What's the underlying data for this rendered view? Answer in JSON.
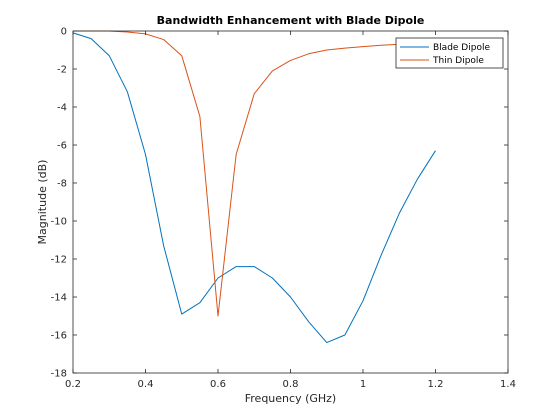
{
  "chart_data": {
    "type": "line",
    "title": "Bandwidth Enhancement with Blade Dipole",
    "xlabel": "Frequency (GHz)",
    "ylabel": "Magnitude (dB)",
    "xlim": [
      0.2,
      1.4
    ],
    "ylim": [
      -18,
      0
    ],
    "xticks": [
      0.2,
      0.4,
      0.6,
      0.8,
      1,
      1.2,
      1.4
    ],
    "xtick_labels": [
      "0.2",
      "0.4",
      "0.6",
      "0.8",
      "1",
      "1.2",
      "1.4"
    ],
    "yticks": [
      0,
      -2,
      -4,
      -6,
      -8,
      -10,
      -12,
      -14,
      -16,
      -18
    ],
    "ytick_labels": [
      "0",
      "-2",
      "-4",
      "-6",
      "-8",
      "-10",
      "-12",
      "-14",
      "-16",
      "-18"
    ],
    "grid": false,
    "legend_position": "top-right",
    "series": [
      {
        "name": "Blade Dipole",
        "color": "#0072BD",
        "x": [
          0.2,
          0.25,
          0.3,
          0.35,
          0.4,
          0.45,
          0.5,
          0.55,
          0.6,
          0.65,
          0.7,
          0.75,
          0.8,
          0.85,
          0.9,
          0.95,
          1.0,
          1.05,
          1.1,
          1.15,
          1.2
        ],
        "y": [
          -0.1,
          -0.4,
          -1.3,
          -3.2,
          -6.5,
          -11.3,
          -14.9,
          -14.3,
          -13.0,
          -12.4,
          -12.4,
          -13.0,
          -14.0,
          -15.3,
          -16.4,
          -16.0,
          -14.2,
          -11.8,
          -9.6,
          -7.8,
          -6.3
        ]
      },
      {
        "name": "Thin Dipole",
        "color": "#D95319",
        "x": [
          0.2,
          0.25,
          0.3,
          0.35,
          0.4,
          0.45,
          0.5,
          0.55,
          0.6,
          0.65,
          0.7,
          0.75,
          0.8,
          0.85,
          0.9,
          0.95,
          1.0,
          1.05,
          1.1,
          1.15,
          1.2
        ],
        "y": [
          0.0,
          0.0,
          0.0,
          -0.05,
          -0.15,
          -0.45,
          -1.3,
          -4.5,
          -15.0,
          -6.5,
          -3.3,
          -2.1,
          -1.55,
          -1.2,
          -1.0,
          -0.9,
          -0.82,
          -0.75,
          -0.7,
          -0.66,
          -0.62
        ]
      }
    ]
  }
}
